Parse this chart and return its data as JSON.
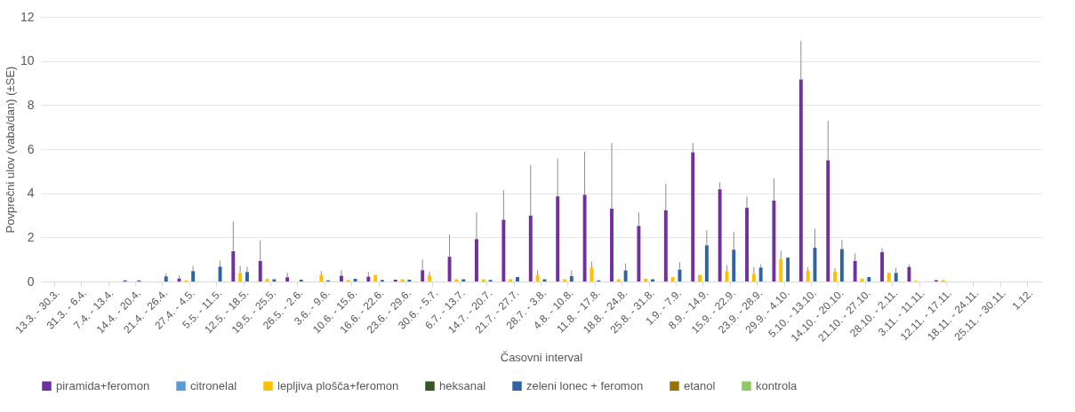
{
  "chart_data": {
    "type": "bar",
    "xlabel": "Časovni interval",
    "ylabel": "Povprečni ulov (vaba/dan) (±SE)",
    "categories": [
      "13.3. - 30.3.",
      "31.3. - 6.4.",
      "7.4. - 13.4.",
      "14.4. - 20.4.",
      "21.4. - 26.4.",
      "27.4. - 4.5.",
      "5.5. - 11.5.",
      "12.5. - 18.5.",
      "19.5. - 25.5.",
      "26.5. - 2.6.",
      "3.6. - 9.6.",
      "10.6. - 15.6.",
      "16.6. - 22.6.",
      "23.6. - 29.6.",
      "30.6. - 5.7.",
      "6.7. - 13.7.",
      "14.7. - 20.7.",
      "21.7. - 27.7.",
      "28.7. - 3.8.",
      "4.8. - 10.8.",
      "11.8. - 17.8.",
      "18.8. - 24.8.",
      "25.8. - 31.8.",
      "1.9. - 7.9.",
      "8.9. - 14.9.",
      "15.9. - 22.9.",
      "23.9. - 28.9.",
      "29.9. - 4.10.",
      "5.10. - 13.10.",
      "14.10. - 20.10.",
      "21.10. - 27.10.",
      "28.10. - 2.11.",
      "3.11. - 11.11.",
      "12.11. - 17.11.",
      "18.11. - 24.11.",
      "25.11. - 30.11.",
      "1.12."
    ],
    "series": [
      {
        "name": "piramida+feromon",
        "color": "#7030a0",
        "values": [
          0,
          0,
          0,
          0.05,
          0,
          0.13,
          0,
          1.37,
          0.93,
          0.19,
          0,
          0.26,
          0.22,
          0.08,
          0.51,
          1.12,
          1.92,
          2.8,
          2.99,
          3.86,
          3.93,
          3.3,
          2.52,
          3.23,
          5.86,
          4.18,
          3.34,
          3.67,
          9.16,
          5.5,
          0.93,
          1.33,
          0.66,
          0.06,
          0,
          0,
          0
        ],
        "errors": [
          null,
          null,
          null,
          null,
          null,
          [
            0.13,
            0.27
          ],
          null,
          [
            1.37,
            2.73
          ],
          [
            0.93,
            1.86
          ],
          [
            0.19,
            0.4
          ],
          null,
          [
            0.26,
            0.51
          ],
          [
            0.22,
            0.43
          ],
          null,
          [
            0.51,
            1.0
          ],
          [
            1.12,
            2.13
          ],
          [
            1.92,
            3.13
          ],
          [
            2.8,
            4.14
          ],
          [
            2.99,
            5.29
          ],
          [
            3.86,
            5.58
          ],
          [
            3.93,
            5.88
          ],
          [
            3.3,
            6.28
          ],
          [
            2.52,
            3.13
          ],
          [
            3.23,
            4.44
          ],
          [
            5.86,
            6.28
          ],
          [
            4.18,
            4.5
          ],
          [
            3.34,
            3.85
          ],
          [
            3.67,
            4.68
          ],
          [
            9.16,
            10.91
          ],
          [
            5.5,
            7.29
          ],
          [
            0.93,
            1.28
          ],
          [
            1.33,
            1.51
          ],
          [
            0.66,
            0.78
          ],
          null,
          null,
          null,
          null
        ]
      },
      {
        "name": "citronelal",
        "color": "#5b9bd5",
        "values": [
          0,
          0,
          0,
          0,
          0,
          0,
          0,
          0,
          0,
          0,
          0,
          0,
          0,
          0,
          0,
          0,
          0,
          0,
          0,
          0,
          0,
          0,
          0,
          0,
          0,
          0,
          0,
          0,
          0,
          0,
          0,
          0,
          0,
          0,
          0,
          0,
          0
        ]
      },
      {
        "name": "lepljiva plošča+feromon",
        "color": "#ffc000",
        "values": [
          0,
          0,
          0,
          0,
          0,
          0.05,
          0,
          0.38,
          0.11,
          0,
          0.3,
          0.07,
          0.3,
          0.1,
          0.27,
          0.1,
          0.1,
          0.1,
          0.3,
          0.1,
          0.63,
          0.1,
          0.12,
          0.2,
          0.3,
          0.47,
          0.34,
          1.01,
          0.5,
          0.44,
          0.13,
          0.4,
          0.03,
          0.06,
          0,
          0,
          0
        ],
        "errors": [
          null,
          null,
          null,
          null,
          null,
          null,
          null,
          [
            0.38,
            0.71
          ],
          null,
          null,
          [
            0.3,
            0.47
          ],
          null,
          null,
          null,
          [
            0.27,
            0.43
          ],
          null,
          null,
          null,
          [
            0.3,
            0.51
          ],
          null,
          [
            0.63,
            0.9
          ],
          null,
          null,
          null,
          null,
          [
            0.47,
            0.74
          ],
          [
            0.34,
            0.67
          ],
          [
            1.01,
            1.39
          ],
          [
            0.5,
            0.65
          ],
          [
            0.44,
            0.61
          ],
          null,
          null,
          null,
          null,
          null,
          null,
          null
        ]
      },
      {
        "name": "heksanal",
        "color": "#375623",
        "values": [
          0,
          0,
          0,
          0,
          0,
          0,
          0,
          0,
          0,
          0,
          0,
          0,
          0,
          0,
          0,
          0,
          0,
          0,
          0,
          0,
          0,
          0,
          0,
          0,
          0,
          0,
          0,
          0,
          0,
          0,
          0,
          0,
          0,
          0,
          0,
          0,
          0
        ]
      },
      {
        "name": "zeleni lonec + feromon",
        "color": "#2e64a0",
        "values": [
          0,
          0,
          0,
          0.05,
          0.23,
          0.47,
          0.67,
          0.43,
          0.1,
          0.08,
          0.05,
          0.12,
          0.07,
          0.08,
          0,
          0.1,
          0.07,
          0.2,
          0.1,
          0.24,
          0.05,
          0.5,
          0.1,
          0.54,
          1.64,
          1.44,
          0.63,
          1.08,
          1.53,
          1.47,
          0.2,
          0.39,
          0,
          0,
          0,
          0,
          0
        ],
        "errors": [
          null,
          null,
          null,
          null,
          [
            0.23,
            0.38
          ],
          [
            0.47,
            0.71
          ],
          [
            0.67,
            0.94
          ],
          [
            0.43,
            0.67
          ],
          null,
          null,
          null,
          null,
          null,
          null,
          null,
          null,
          null,
          null,
          null,
          [
            0.24,
            0.51
          ],
          null,
          [
            0.5,
            0.81
          ],
          null,
          [
            0.54,
            0.87
          ],
          [
            1.64,
            2.33
          ],
          [
            1.44,
            2.25
          ],
          [
            0.63,
            0.77
          ],
          null,
          [
            1.53,
            2.39
          ],
          [
            1.47,
            1.88
          ],
          null,
          [
            0.39,
            0.63
          ],
          null,
          null,
          null,
          null,
          null
        ]
      },
      {
        "name": "etanol",
        "color": "#997300",
        "values": [
          0,
          0,
          0,
          0,
          0,
          0,
          0,
          0,
          0,
          0,
          0,
          0,
          0,
          0,
          0,
          0,
          0,
          0,
          0,
          0,
          0,
          0,
          0,
          0,
          0,
          0,
          0,
          0,
          0,
          0,
          0,
          0,
          0,
          0,
          0,
          0,
          0
        ]
      },
      {
        "name": "kontrola",
        "color": "#8fc866",
        "values": [
          0,
          0,
          0,
          0,
          0,
          0,
          0,
          0,
          0,
          0,
          0,
          0,
          0,
          0,
          0,
          0,
          0,
          0,
          0,
          0,
          0,
          0,
          0,
          0,
          0,
          0,
          0,
          0,
          0,
          0,
          0,
          0,
          0,
          0,
          0,
          0,
          0
        ]
      }
    ],
    "ylim": [
      0,
      12
    ],
    "yticks": [
      0,
      2,
      4,
      6,
      8,
      10,
      12
    ],
    "grid": "y",
    "legend": "bottom"
  }
}
